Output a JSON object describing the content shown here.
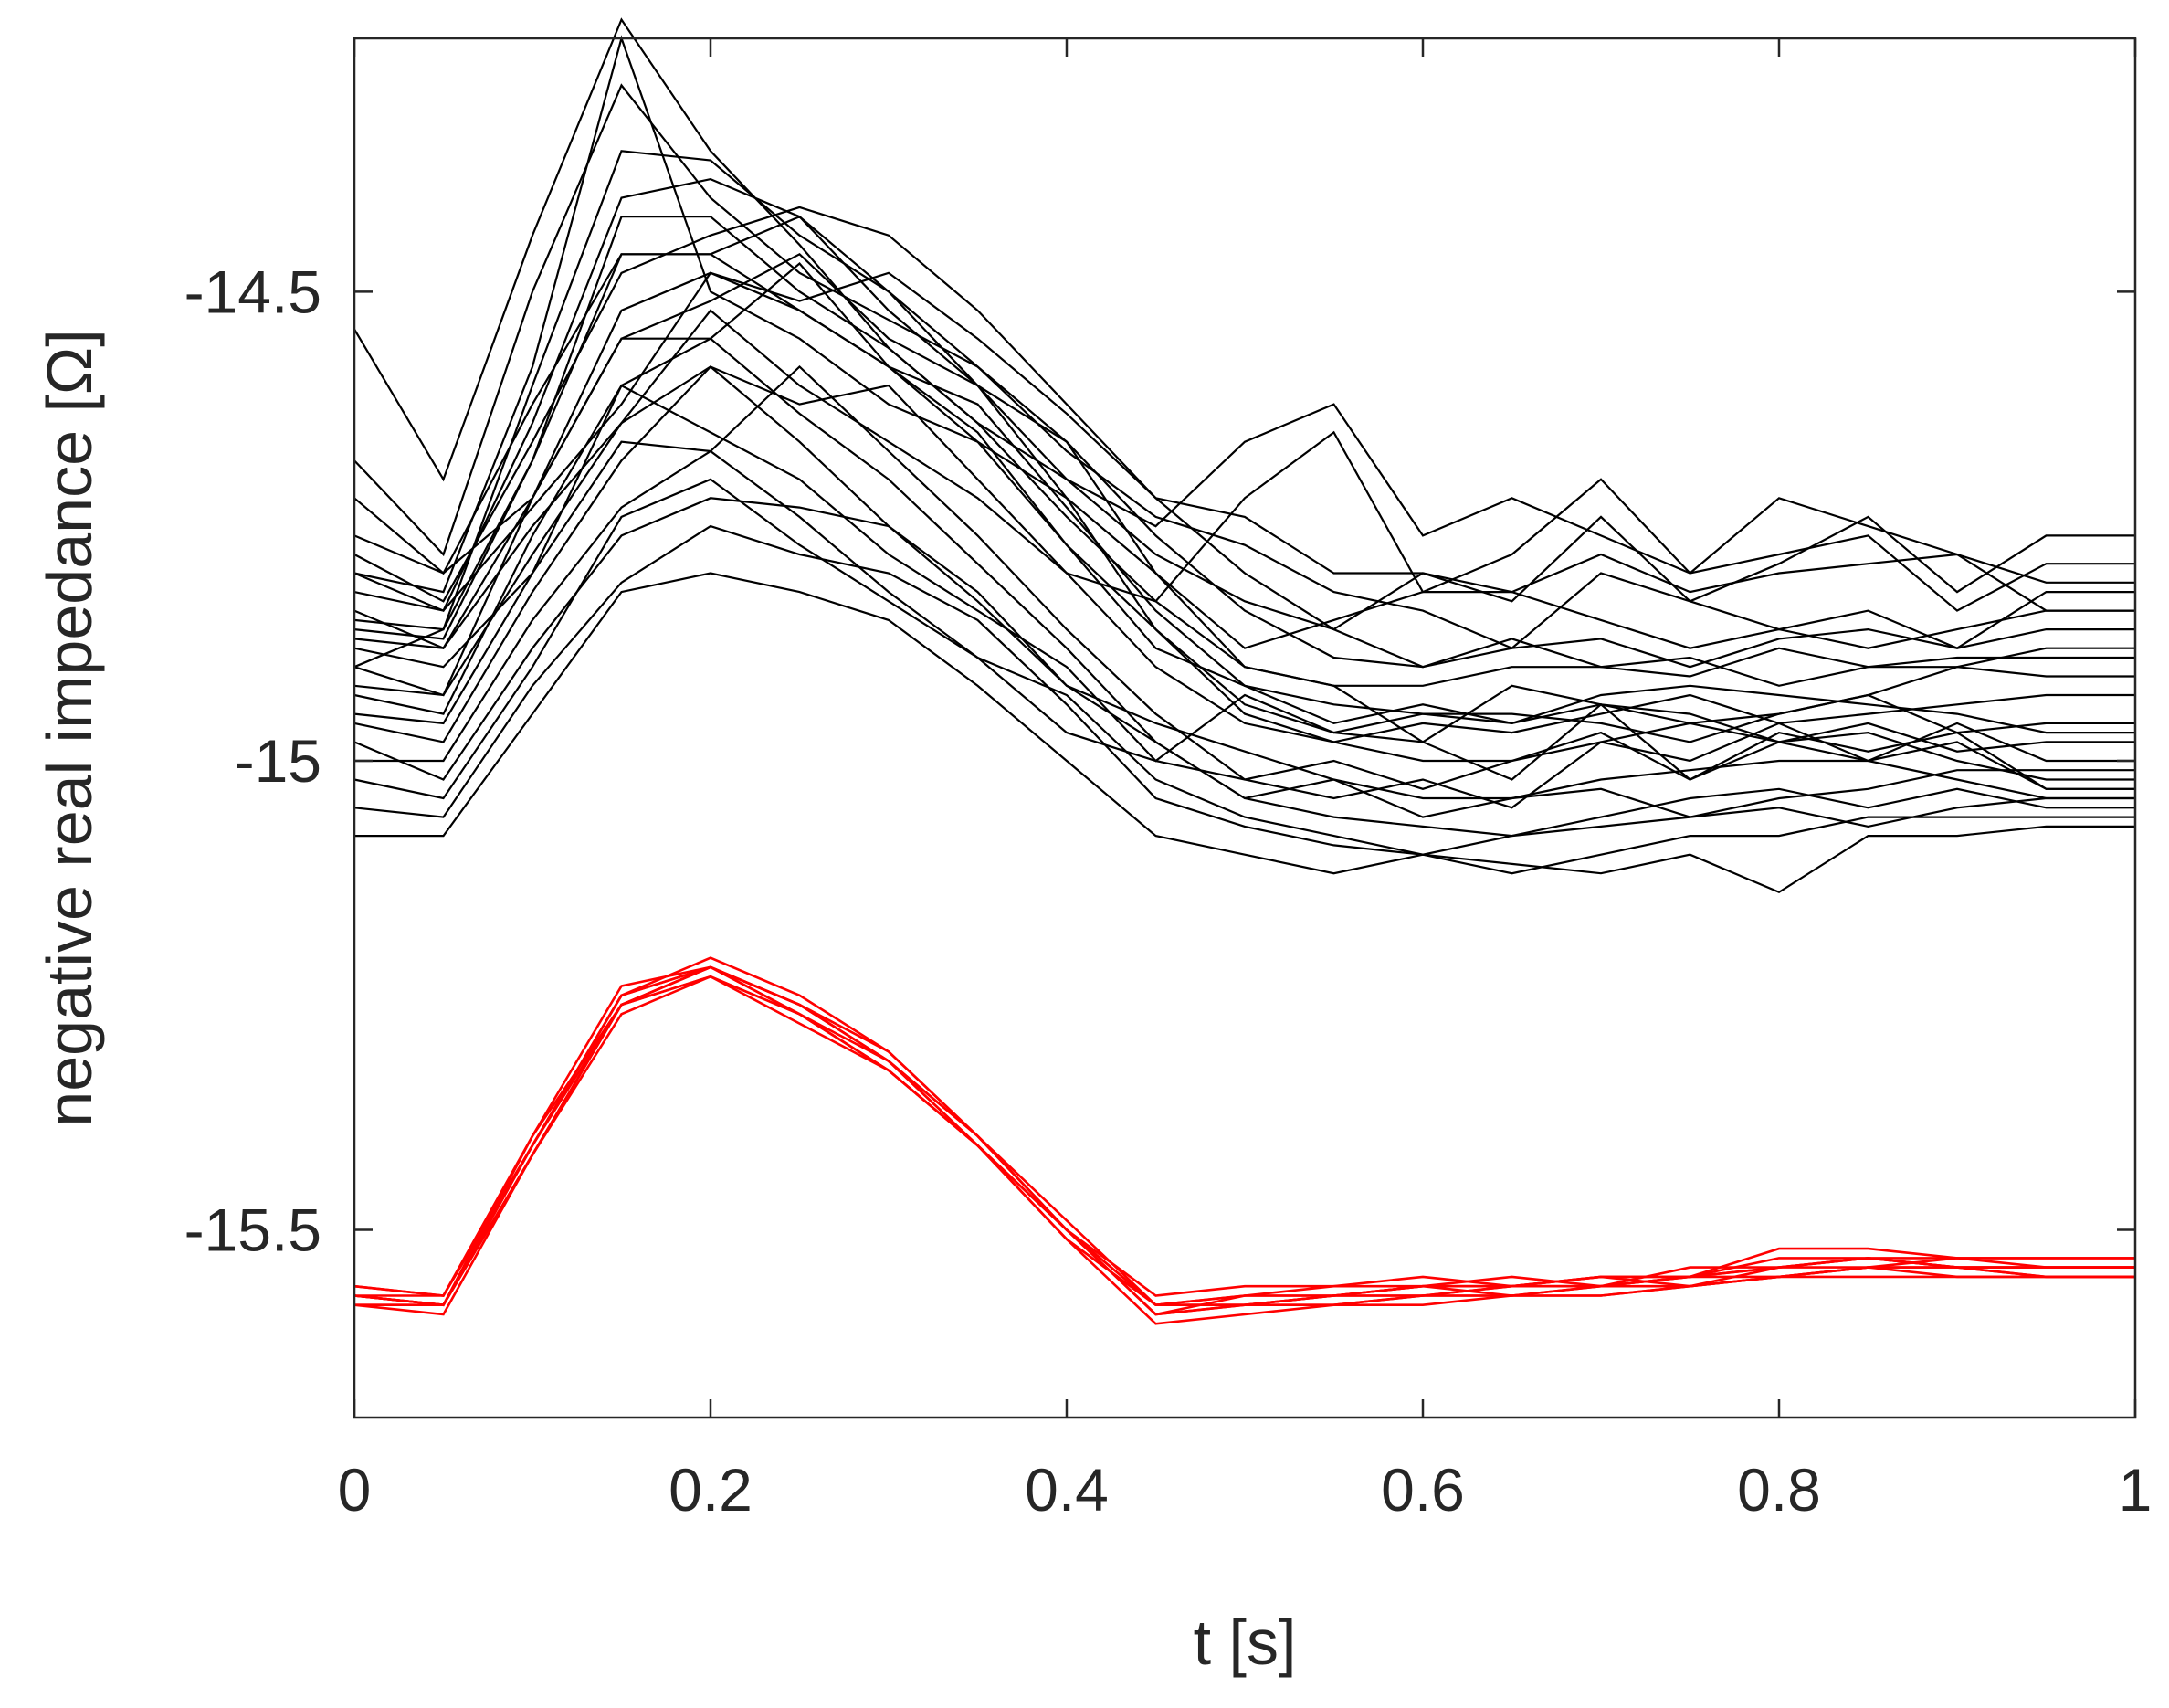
{
  "chart_data": {
    "type": "line",
    "title": "",
    "xlabel": "t [s]",
    "ylabel": "negative real impedance [Ω]",
    "xlim": [
      0,
      1
    ],
    "ylim": [
      -15.7,
      -14.23
    ],
    "grid": false,
    "legend": "none",
    "xticks": [
      0,
      0.2,
      0.4,
      0.6,
      0.8,
      1
    ],
    "xtick_labels": [
      "0",
      "0.2",
      "0.4",
      "0.6",
      "0.8",
      "1"
    ],
    "yticks": [
      -14.5,
      -15,
      -15.5
    ],
    "ytick_labels": [
      "-14.5",
      "-15",
      "-15.5"
    ],
    "x": [
      0,
      0.05,
      0.1,
      0.15,
      0.2,
      0.25,
      0.3,
      0.35,
      0.4,
      0.45,
      0.5,
      0.55,
      0.6,
      0.65,
      0.7,
      0.75,
      0.8,
      0.85,
      0.9,
      0.95,
      1.0
    ],
    "colors": {
      "black_group": "#000000",
      "red_group": "#ff0000"
    },
    "series": [
      {
        "group": "black",
        "values": [
          -14.54,
          -14.7,
          -14.44,
          -14.21,
          -14.35,
          -14.45,
          -14.56,
          -14.64,
          -14.7,
          -14.78,
          -14.83,
          -14.86,
          -14.8,
          -14.83,
          -14.74,
          -14.83,
          -14.79,
          -14.74,
          -14.82,
          -14.76,
          -14.76
        ]
      },
      {
        "group": "black",
        "values": [
          -14.68,
          -14.78,
          -14.5,
          -14.28,
          -14.4,
          -14.48,
          -14.53,
          -14.58,
          -14.67,
          -14.74,
          -14.77,
          -14.82,
          -14.84,
          -14.88,
          -14.8,
          -14.83,
          -14.86,
          -14.84,
          -14.88,
          -14.82,
          -14.82
        ]
      },
      {
        "group": "black",
        "values": [
          -14.8,
          -14.82,
          -14.58,
          -14.23,
          -14.5,
          -14.55,
          -14.62,
          -14.66,
          -14.72,
          -14.8,
          -14.88,
          -14.85,
          -14.82,
          -14.82,
          -14.85,
          -14.88,
          -14.86,
          -14.88,
          -14.86,
          -14.84,
          -14.84
        ]
      },
      {
        "group": "black",
        "values": [
          -14.85,
          -14.86,
          -14.6,
          -14.35,
          -14.36,
          -14.44,
          -14.5,
          -14.58,
          -14.66,
          -14.76,
          -14.84,
          -14.89,
          -14.9,
          -14.88,
          -14.87,
          -14.9,
          -14.87,
          -14.86,
          -14.88,
          -14.86,
          -14.86
        ]
      },
      {
        "group": "black",
        "values": [
          -14.9,
          -14.86,
          -14.68,
          -14.42,
          -14.42,
          -14.5,
          -14.56,
          -14.64,
          -14.74,
          -14.83,
          -14.9,
          -14.92,
          -14.92,
          -14.9,
          -14.9,
          -14.89,
          -14.92,
          -14.9,
          -14.9,
          -14.88,
          -14.88
        ]
      },
      {
        "group": "black",
        "values": [
          -14.76,
          -14.8,
          -14.72,
          -14.52,
          -14.48,
          -14.51,
          -14.48,
          -14.55,
          -14.63,
          -14.72,
          -14.74,
          -14.8,
          -14.8,
          -14.82,
          -14.78,
          -14.82,
          -14.8,
          -14.79,
          -14.78,
          -14.81,
          -14.81
        ]
      },
      {
        "group": "black",
        "values": [
          -14.87,
          -14.88,
          -14.72,
          -14.55,
          -14.51,
          -14.46,
          -14.55,
          -14.6,
          -14.72,
          -14.86,
          -14.95,
          -14.98,
          -14.96,
          -14.97,
          -14.95,
          -14.93,
          -14.96,
          -14.95,
          -14.94,
          -14.93,
          -14.93
        ]
      },
      {
        "group": "black",
        "values": [
          -14.93,
          -14.95,
          -14.76,
          -14.6,
          -14.55,
          -14.47,
          -14.58,
          -14.62,
          -14.73,
          -14.84,
          -14.92,
          -14.94,
          -14.95,
          -14.96,
          -14.93,
          -14.92,
          -14.93,
          -14.94,
          -14.95,
          -14.97,
          -14.97
        ]
      },
      {
        "group": "black",
        "values": [
          -14.96,
          -14.98,
          -14.82,
          -14.68,
          -14.58,
          -14.62,
          -14.6,
          -14.7,
          -14.8,
          -14.9,
          -14.96,
          -14.98,
          -15.0,
          -15.0,
          -14.98,
          -14.96,
          -14.98,
          -14.97,
          -15.0,
          -15.02,
          -15.02
        ]
      },
      {
        "group": "black",
        "values": [
          -15.0,
          -15.0,
          -14.85,
          -14.73,
          -14.67,
          -14.58,
          -14.67,
          -14.76,
          -14.86,
          -14.95,
          -15.02,
          -15.04,
          -15.02,
          -15.05,
          -14.98,
          -15.0,
          -14.96,
          -15.0,
          -14.98,
          -15.03,
          -15.03
        ]
      },
      {
        "group": "black",
        "values": [
          -14.98,
          -15.02,
          -14.88,
          -14.76,
          -14.72,
          -14.73,
          -14.75,
          -14.82,
          -14.92,
          -14.96,
          -14.99,
          -15.02,
          -15.04,
          -15.04,
          -15.02,
          -15.01,
          -15.0,
          -15.0,
          -15.02,
          -15.04,
          -15.04
        ]
      },
      {
        "group": "black",
        "values": [
          -15.02,
          -15.04,
          -14.9,
          -14.74,
          -14.7,
          -14.77,
          -14.83,
          -14.89,
          -14.93,
          -15.02,
          -15.06,
          -15.08,
          -15.1,
          -15.08,
          -15.06,
          -15.04,
          -15.03,
          -15.05,
          -15.03,
          -15.05,
          -15.05
        ]
      },
      {
        "group": "black",
        "values": [
          -15.05,
          -15.06,
          -14.92,
          -14.81,
          -14.75,
          -14.78,
          -14.8,
          -14.85,
          -14.94,
          -15.04,
          -15.07,
          -15.09,
          -15.1,
          -15.12,
          -15.1,
          -15.08,
          -15.08,
          -15.06,
          -15.06,
          -15.06,
          -15.06
        ]
      },
      {
        "group": "black",
        "values": [
          -15.08,
          -15.08,
          -14.95,
          -14.82,
          -14.8,
          -14.82,
          -14.85,
          -14.92,
          -15.0,
          -15.08,
          -15.1,
          -15.12,
          -15.1,
          -15.11,
          -15.12,
          -15.1,
          -15.14,
          -15.08,
          -15.08,
          -15.07,
          -15.07
        ]
      },
      {
        "group": "black",
        "values": [
          -14.95,
          -14.96,
          -14.8,
          -14.66,
          -14.67,
          -14.74,
          -14.82,
          -14.89,
          -14.97,
          -15.0,
          -15.02,
          -15.0,
          -15.03,
          -15.0,
          -14.97,
          -15.02,
          -14.98,
          -15.0,
          -14.96,
          -15.0,
          -15.0
        ]
      },
      {
        "group": "black",
        "values": [
          -14.92,
          -14.93,
          -14.78,
          -14.64,
          -14.58,
          -14.66,
          -14.75,
          -14.83,
          -14.92,
          -14.98,
          -15.04,
          -15.02,
          -15.06,
          -15.04,
          -15.03,
          -15.06,
          -15.04,
          -15.03,
          -15.01,
          -15.01,
          -15.01
        ]
      },
      {
        "group": "black",
        "values": [
          -14.82,
          -14.84,
          -14.73,
          -14.62,
          -14.48,
          -14.52,
          -14.58,
          -14.65,
          -14.77,
          -14.86,
          -14.94,
          -14.97,
          -14.95,
          -14.95,
          -14.96,
          -14.98,
          -14.95,
          -14.93,
          -14.97,
          -14.96,
          -14.96
        ]
      },
      {
        "group": "black",
        "values": [
          -14.78,
          -14.83,
          -14.66,
          -14.48,
          -14.44,
          -14.41,
          -14.44,
          -14.52,
          -14.62,
          -14.72,
          -14.8,
          -14.86,
          -14.9,
          -14.87,
          -14.9,
          -14.91,
          -14.88,
          -14.9,
          -14.89,
          -14.89,
          -14.89
        ]
      },
      {
        "group": "black",
        "values": [
          -14.72,
          -14.8,
          -14.62,
          -14.46,
          -14.46,
          -14.52,
          -14.58,
          -14.66,
          -14.77,
          -14.88,
          -14.92,
          -14.96,
          -14.94,
          -14.96,
          -14.94,
          -14.95,
          -14.98,
          -14.96,
          -14.99,
          -14.98,
          -14.98
        ]
      },
      {
        "group": "black",
        "values": [
          -14.9,
          -14.93,
          -14.72,
          -14.55,
          -14.55,
          -14.63,
          -14.7,
          -14.79,
          -14.88,
          -14.98,
          -15.04,
          -15.06,
          -15.07,
          -15.08,
          -15.07,
          -15.06,
          -15.05,
          -15.07,
          -15.05,
          -15.04,
          -15.04
        ]
      },
      {
        "group": "black",
        "values": [
          -14.88,
          -14.9,
          -14.8,
          -14.6,
          -14.65,
          -14.7,
          -14.78,
          -14.84,
          -14.9,
          -15.0,
          -14.93,
          -14.97,
          -14.98,
          -15.02,
          -14.94,
          -15.02,
          -14.97,
          -14.99,
          -14.97,
          -15.03,
          -15.03
        ]
      },
      {
        "group": "black",
        "values": [
          -14.84,
          -14.88,
          -14.75,
          -14.64,
          -14.52,
          -14.6,
          -14.66,
          -14.72,
          -14.8,
          -14.83,
          -14.72,
          -14.65,
          -14.82,
          -14.78,
          -14.7,
          -14.8,
          -14.72,
          -14.75,
          -14.78,
          -14.84,
          -14.84
        ]
      },
      {
        "group": "black",
        "values": [
          -14.8,
          -14.84,
          -14.64,
          -14.4,
          -14.38,
          -14.42,
          -14.5,
          -14.6,
          -14.7,
          -14.75,
          -14.66,
          -14.62,
          -14.76,
          -14.72,
          -14.76,
          -14.8,
          -14.78,
          -14.76,
          -14.84,
          -14.79,
          -14.79
        ]
      },
      {
        "group": "black",
        "values": [
          -14.86,
          -14.87,
          -14.68,
          -14.46,
          -14.46,
          -14.42,
          -14.52,
          -14.6,
          -14.66,
          -14.8,
          -14.9,
          -14.92,
          -14.98,
          -14.92,
          -14.94,
          -14.96,
          -14.95,
          -14.93,
          -14.9,
          -14.91,
          -14.91
        ]
      },
      {
        "group": "red",
        "values": [
          -15.56,
          -15.57,
          -15.41,
          -15.25,
          -15.22,
          -15.26,
          -15.32,
          -15.4,
          -15.5,
          -15.58,
          -15.57,
          -15.57,
          -15.56,
          -15.56,
          -15.56,
          -15.55,
          -15.54,
          -15.53,
          -15.53,
          -15.53,
          -15.53
        ]
      },
      {
        "group": "red",
        "values": [
          -15.57,
          -15.58,
          -15.4,
          -15.24,
          -15.22,
          -15.26,
          -15.31,
          -15.4,
          -15.5,
          -15.59,
          -15.58,
          -15.57,
          -15.57,
          -15.56,
          -15.55,
          -15.55,
          -15.54,
          -15.53,
          -15.54,
          -15.54,
          -15.54
        ]
      },
      {
        "group": "red",
        "values": [
          -15.58,
          -15.58,
          -15.42,
          -15.26,
          -15.23,
          -15.27,
          -15.33,
          -15.41,
          -15.51,
          -15.58,
          -15.58,
          -15.58,
          -15.57,
          -15.57,
          -15.56,
          -15.56,
          -15.55,
          -15.54,
          -15.54,
          -15.55,
          -15.55
        ]
      },
      {
        "group": "red",
        "values": [
          -15.57,
          -15.57,
          -15.41,
          -15.25,
          -15.21,
          -15.25,
          -15.31,
          -15.4,
          -15.5,
          -15.57,
          -15.56,
          -15.56,
          -15.55,
          -15.56,
          -15.56,
          -15.55,
          -15.52,
          -15.52,
          -15.53,
          -15.53,
          -15.53
        ]
      },
      {
        "group": "red",
        "values": [
          -15.58,
          -15.59,
          -15.42,
          -15.27,
          -15.23,
          -15.28,
          -15.33,
          -15.41,
          -15.51,
          -15.6,
          -15.59,
          -15.58,
          -15.58,
          -15.57,
          -15.57,
          -15.56,
          -15.55,
          -15.54,
          -15.55,
          -15.55,
          -15.55
        ]
      },
      {
        "group": "red",
        "values": [
          -15.57,
          -15.58,
          -15.41,
          -15.26,
          -15.22,
          -15.27,
          -15.32,
          -15.41,
          -15.5,
          -15.58,
          -15.58,
          -15.57,
          -15.56,
          -15.55,
          -15.56,
          -15.54,
          -15.54,
          -15.53,
          -15.54,
          -15.54,
          -15.54
        ]
      },
      {
        "group": "red",
        "values": [
          -15.56,
          -15.57,
          -15.4,
          -15.26,
          -15.22,
          -15.26,
          -15.32,
          -15.4,
          -15.49,
          -15.58,
          -15.57,
          -15.56,
          -15.56,
          -15.56,
          -15.55,
          -15.56,
          -15.54,
          -15.54,
          -15.53,
          -15.54,
          -15.54
        ]
      },
      {
        "group": "red",
        "values": [
          -15.58,
          -15.58,
          -15.42,
          -15.26,
          -15.23,
          -15.27,
          -15.33,
          -15.41,
          -15.5,
          -15.59,
          -15.58,
          -15.58,
          -15.57,
          -15.57,
          -15.57,
          -15.56,
          -15.55,
          -15.55,
          -15.55,
          -15.55,
          -15.55
        ]
      },
      {
        "group": "red",
        "values": [
          -15.57,
          -15.58,
          -15.41,
          -15.25,
          -15.22,
          -15.26,
          -15.32,
          -15.41,
          -15.5,
          -15.59,
          -15.57,
          -15.57,
          -15.57,
          -15.56,
          -15.55,
          -15.55,
          -15.53,
          -15.53,
          -15.54,
          -15.54,
          -15.54
        ]
      },
      {
        "group": "red",
        "values": [
          -15.57,
          -15.58,
          -15.42,
          -15.26,
          -15.22,
          -15.27,
          -15.33,
          -15.41,
          -15.51,
          -15.58,
          -15.58,
          -15.57,
          -15.56,
          -15.57,
          -15.56,
          -15.55,
          -15.55,
          -15.54,
          -15.54,
          -15.55,
          -15.55
        ]
      }
    ]
  }
}
